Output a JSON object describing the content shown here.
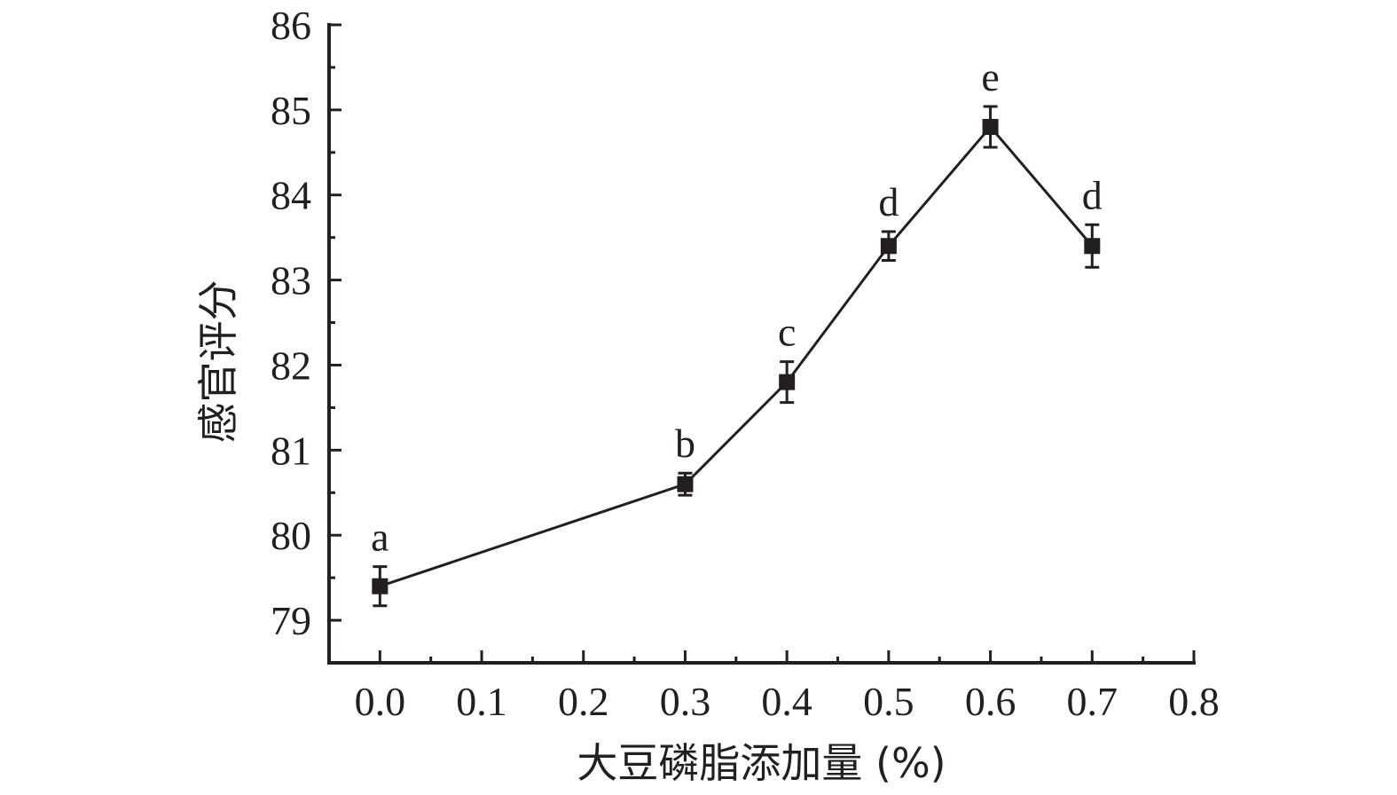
{
  "chart_data": {
    "type": "line",
    "xlabel": "大豆磷脂添加量 (%)",
    "ylabel": "感官评分",
    "xlim": [
      -0.05,
      0.8
    ],
    "ylim": [
      78.5,
      86
    ],
    "x_ticks": [
      "0.0",
      "0.1",
      "0.2",
      "0.3",
      "0.4",
      "0.5",
      "0.6",
      "0.7",
      "0.8"
    ],
    "y_ticks": [
      "79",
      "80",
      "81",
      "82",
      "83",
      "84",
      "85",
      "86"
    ],
    "grid": false,
    "series": [
      {
        "marker": "square",
        "color": "#231f20",
        "points": [
          {
            "x": 0.0,
            "y": 79.4,
            "err": 0.23,
            "label": "a"
          },
          {
            "x": 0.3,
            "y": 80.6,
            "err": 0.13,
            "label": "b"
          },
          {
            "x": 0.4,
            "y": 81.8,
            "err": 0.24,
            "label": "c"
          },
          {
            "x": 0.5,
            "y": 83.4,
            "err": 0.17,
            "label": "d"
          },
          {
            "x": 0.6,
            "y": 84.8,
            "err": 0.24,
            "label": "e"
          },
          {
            "x": 0.7,
            "y": 83.4,
            "err": 0.25,
            "label": "d"
          }
        ]
      }
    ]
  }
}
